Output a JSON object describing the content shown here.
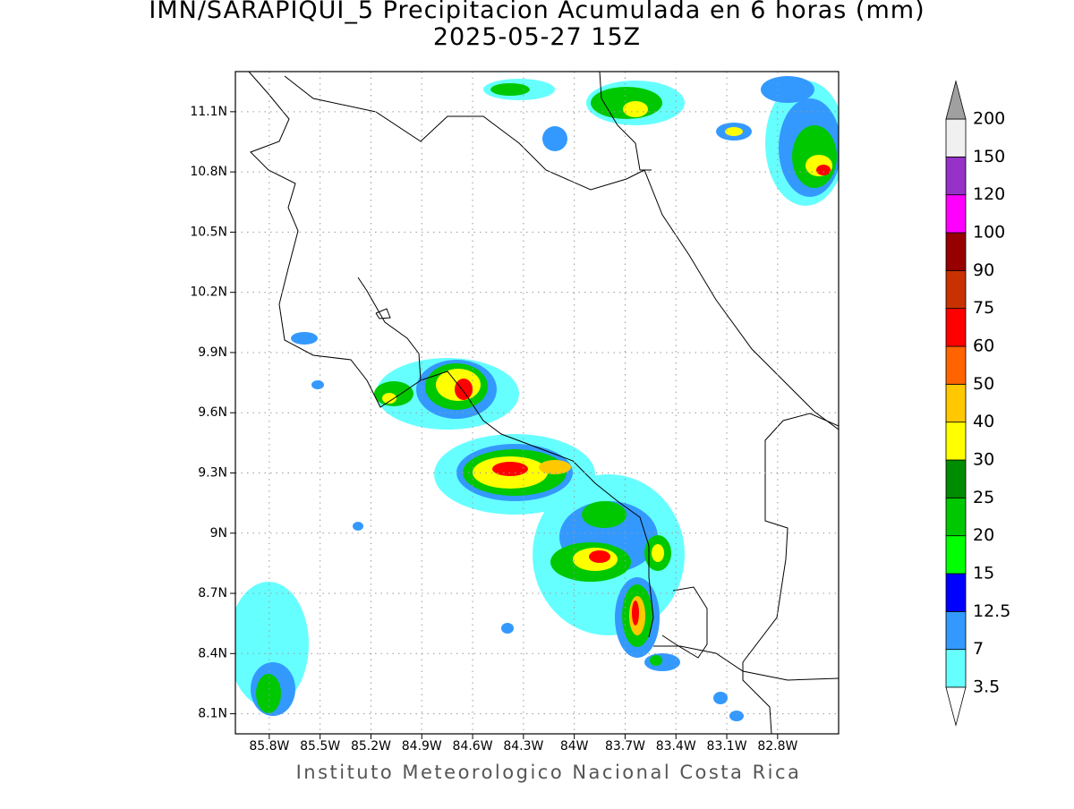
{
  "title": "IMN/SARAPIQUI_5 Precipitacion Acumulada en 6 horas (mm)",
  "subtitle": "2025-05-27 15Z",
  "footer": "Instituto Meteorologico Nacional Costa Rica",
  "map": {
    "lon_range": [
      -86.0,
      -82.44
    ],
    "lat_range": [
      8.0,
      11.3
    ],
    "lon_ticks": [
      {
        "value": -85.8,
        "label": "85.8W"
      },
      {
        "value": -85.5,
        "label": "85.5W"
      },
      {
        "value": -85.2,
        "label": "85.2W"
      },
      {
        "value": -84.9,
        "label": "84.9W"
      },
      {
        "value": -84.6,
        "label": "84.6W"
      },
      {
        "value": -84.3,
        "label": "84.3W"
      },
      {
        "value": -84.0,
        "label": "84W"
      },
      {
        "value": -83.7,
        "label": "83.7W"
      },
      {
        "value": -83.4,
        "label": "83.4W"
      },
      {
        "value": -83.1,
        "label": "83.1W"
      },
      {
        "value": -82.8,
        "label": "82.8W"
      }
    ],
    "lat_ticks": [
      {
        "value": 8.1,
        "label": "8.1N"
      },
      {
        "value": 8.4,
        "label": "8.4N"
      },
      {
        "value": 8.7,
        "label": "8.7N"
      },
      {
        "value": 9.0,
        "label": "9N"
      },
      {
        "value": 9.3,
        "label": "9.3N"
      },
      {
        "value": 9.6,
        "label": "9.6N"
      },
      {
        "value": 9.9,
        "label": "9.9N"
      },
      {
        "value": 10.2,
        "label": "10.2N"
      },
      {
        "value": 10.5,
        "label": "10.5N"
      },
      {
        "value": 10.8,
        "label": "10.8N"
      },
      {
        "value": 11.1,
        "label": "11.1N"
      }
    ],
    "grid": true
  },
  "colorbar": {
    "levels": [
      3.5,
      7,
      12.5,
      15,
      20,
      25,
      30,
      40,
      50,
      60,
      75,
      90,
      100,
      120,
      150,
      200
    ],
    "colors": [
      "#66ffff",
      "#3399ff",
      "#0000ff",
      "#00ff00",
      "#00c800",
      "#008c00",
      "#ffff00",
      "#ffc800",
      "#ff6400",
      "#ff0000",
      "#c83200",
      "#960000",
      "#ff00ff",
      "#9632c8",
      "#f0f0f0"
    ],
    "under_color": "#ffffff",
    "over_color": "#a0a0a0"
  }
}
